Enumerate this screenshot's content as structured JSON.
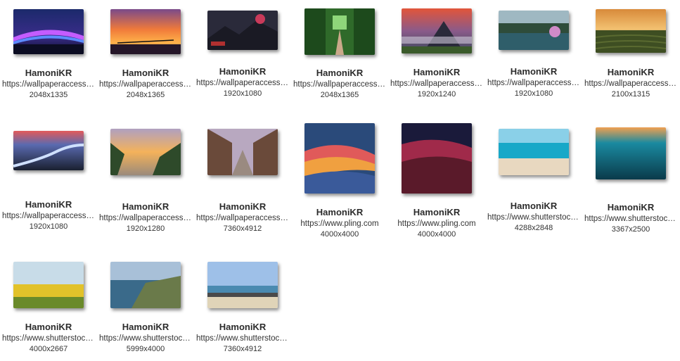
{
  "wallpapers": [
    {
      "author": "HamoniKR",
      "source": "https://wallpaperaccess.com",
      "resolution": "2048x1335"
    },
    {
      "author": "HamoniKR",
      "source": "https://wallpaperaccess.com",
      "resolution": "2048x1365"
    },
    {
      "author": "HamoniKR",
      "source": "https://wallpaperaccess.com",
      "resolution": "1920x1080"
    },
    {
      "author": "HamoniKR",
      "source": "https://wallpaperaccess.com",
      "resolution": "2048x1365"
    },
    {
      "author": "HamoniKR",
      "source": "https://wallpaperaccess.com",
      "resolution": "1920x1240"
    },
    {
      "author": "HamoniKR",
      "source": "https://wallpaperaccess.com",
      "resolution": "1920x1080"
    },
    {
      "author": "HamoniKR",
      "source": "https://wallpaperaccess.com",
      "resolution": "2100x1315"
    },
    {
      "author": "HamoniKR",
      "source": "https://wallpaperaccess.com",
      "resolution": "1920x1080"
    },
    {
      "author": "HamoniKR",
      "source": "https://wallpaperaccess.com",
      "resolution": "1920x1280"
    },
    {
      "author": "HamoniKR",
      "source": "https://wallpaperaccess.com",
      "resolution": "7360x4912"
    },
    {
      "author": "HamoniKR",
      "source": "https://www.pling.com",
      "resolution": "4000x4000"
    },
    {
      "author": "HamoniKR",
      "source": "https://www.pling.com",
      "resolution": "4000x4000"
    },
    {
      "author": "HamoniKR",
      "source": "https://www.shutterstock.com",
      "resolution": "4288x2848"
    },
    {
      "author": "HamoniKR",
      "source": "https://www.shutterstock.com",
      "resolution": "3367x2500"
    },
    {
      "author": "HamoniKR",
      "source": "https://www.shutterstock.com",
      "resolution": "4000x2667"
    },
    {
      "author": "HamoniKR",
      "source": "https://www.shutterstock.com",
      "resolution": "5999x4000"
    },
    {
      "author": "HamoniKR",
      "source": "https://www.shutterstock.com",
      "resolution": "7360x4912"
    }
  ]
}
